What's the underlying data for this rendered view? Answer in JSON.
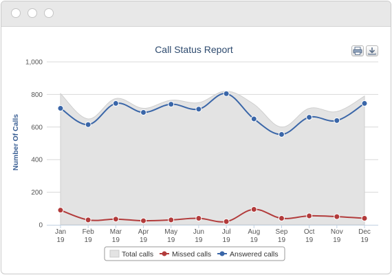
{
  "window": {
    "controls": [
      "close",
      "minimize",
      "maximize"
    ]
  },
  "toolbar": {
    "print_icon": "printer-icon",
    "download_icon": "download-icon"
  },
  "chart_data": {
    "type": "area+line",
    "title": "Call Status Report",
    "xlabel": "",
    "ylabel": "Number Of Calls",
    "ylim": [
      0,
      1000
    ],
    "yticks": [
      0,
      200,
      400,
      600,
      800,
      1000
    ],
    "ytick_labels": [
      "0",
      "200",
      "400",
      "600",
      "800",
      "1,000"
    ],
    "categories": [
      [
        "Jan",
        "19"
      ],
      [
        "Feb",
        "19"
      ],
      [
        "Mar",
        "19"
      ],
      [
        "Apr",
        "19"
      ],
      [
        "May",
        "19"
      ],
      [
        "Jun",
        "19"
      ],
      [
        "Jul",
        "19"
      ],
      [
        "Aug",
        "19"
      ],
      [
        "Sep",
        "19"
      ],
      [
        "Oct",
        "19"
      ],
      [
        "Nov",
        "19"
      ],
      [
        "Dec",
        "19"
      ]
    ],
    "series": [
      {
        "name": "Total calls",
        "type": "area",
        "color": "#e3e3e3",
        "values": [
          805,
          650,
          775,
          715,
          765,
          750,
          820,
          740,
          600,
          715,
          695,
          790
        ]
      },
      {
        "name": "Missed calls",
        "type": "line",
        "color": "#b23b3b",
        "values": [
          90,
          30,
          35,
          25,
          30,
          40,
          20,
          95,
          40,
          55,
          50,
          40
        ]
      },
      {
        "name": "Answered calls",
        "type": "line",
        "color": "#3a66a8",
        "values": [
          715,
          615,
          745,
          690,
          740,
          710,
          805,
          650,
          555,
          660,
          640,
          745
        ]
      }
    ],
    "grid": true,
    "legend_position": "bottom-center"
  }
}
